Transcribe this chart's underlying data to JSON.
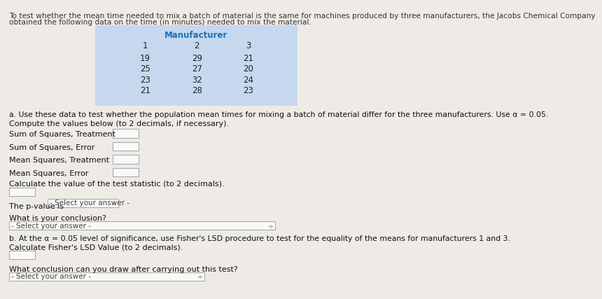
{
  "title_line1": "To test whether the mean time needed to mix a batch of material is the same for machines produced by three manufacturers, the Jacobs Chemical Company",
  "title_line2": "obtained the following data on the time (in minutes) needed to mix the material.",
  "table_header": "Manufacturer",
  "table_cols": [
    "1",
    "2",
    "3"
  ],
  "table_data": [
    [
      "19",
      "29",
      "21"
    ],
    [
      "25",
      "27",
      "20"
    ],
    [
      "23",
      "32",
      "24"
    ],
    [
      "21",
      "28",
      "23"
    ]
  ],
  "table_bg": "#c5d8ee",
  "table_header_color": "#1a72bb",
  "section_a": "a. Use these data to test whether the population mean times for mixing a batch of material differ for the three manufacturers. Use α = 0.05.",
  "compute_label": "Compute the values below (to 2 decimals, if necessary).",
  "labels": [
    "Sum of Squares, Treatment",
    "Sum of Squares, Error",
    "Mean Squares, Treatment",
    "Mean Squares, Error"
  ],
  "calc_label": "Calculate the value of the test statistic (to 2 decimals).",
  "pvalue_label": "The p-value is",
  "pvalue_dropdown": "- Select your answer -",
  "conclusion_label": "What is your conclusion?",
  "conclusion_dropdown": "- Select your answer -",
  "section_b": "b. At the α = 0.05 level of significance, use Fisher's LSD procedure to test for the equality of the means for manufacturers 1 and 3.",
  "lsd_label": "Calculate Fisher's LSD Value (to 2 decimals).",
  "what_conclusion": "What conclusion can you draw after carrying out this test?",
  "final_dropdown": "- Select your answer -",
  "bg_color": "#eeebe6",
  "text_color": "#222222",
  "box_color": "#f8f8f8",
  "box_border": "#aaaaaa"
}
